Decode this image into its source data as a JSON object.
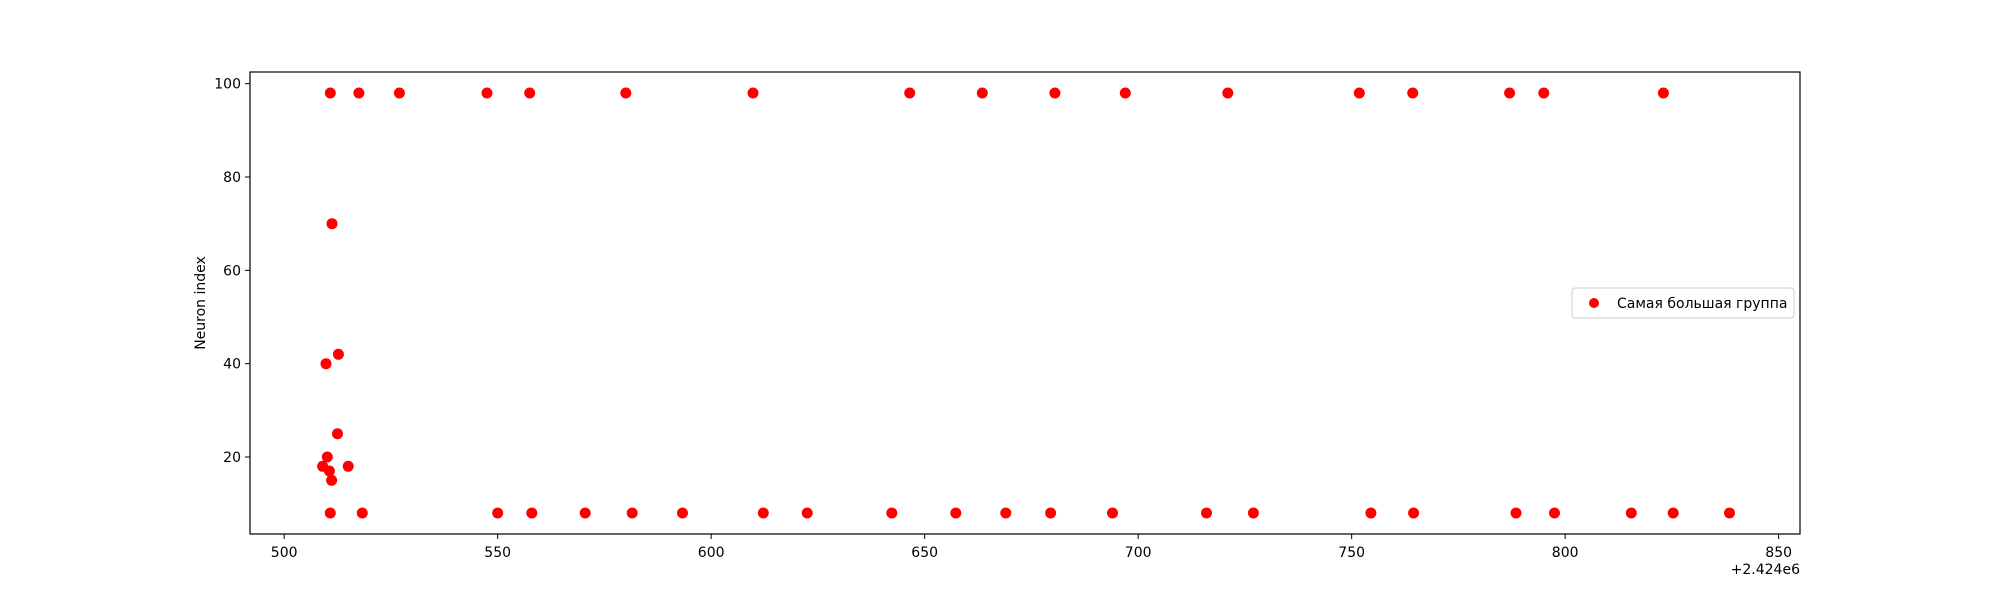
{
  "chart_data": {
    "type": "scatter",
    "xlabel": "",
    "ylabel": "Neuron index",
    "x_offset_text": "+2.424e6",
    "xlim": [
      492,
      855
    ],
    "ylim": [
      3.5,
      102.5
    ],
    "xticks": [
      500,
      550,
      600,
      650,
      700,
      750,
      800,
      850
    ],
    "yticks": [
      20,
      40,
      60,
      80,
      100
    ],
    "grid": false,
    "legend_position": "center-right",
    "series": [
      {
        "name": "Самая большая группа",
        "color": "#ff0000",
        "points": [
          [
            510.8,
            98
          ],
          [
            517.5,
            98
          ],
          [
            527.0,
            98
          ],
          [
            547.5,
            98
          ],
          [
            557.5,
            98
          ],
          [
            580.0,
            98
          ],
          [
            609.8,
            98
          ],
          [
            646.5,
            98
          ],
          [
            663.5,
            98
          ],
          [
            680.5,
            98
          ],
          [
            697.0,
            98
          ],
          [
            721.0,
            98
          ],
          [
            751.8,
            98
          ],
          [
            764.3,
            98
          ],
          [
            787.0,
            98
          ],
          [
            795.0,
            98
          ],
          [
            823.0,
            98
          ],
          [
            511.2,
            70
          ],
          [
            512.7,
            42
          ],
          [
            509.8,
            40
          ],
          [
            512.5,
            25
          ],
          [
            510.1,
            20
          ],
          [
            509.0,
            18
          ],
          [
            515.0,
            18
          ],
          [
            510.6,
            17
          ],
          [
            511.1,
            15
          ],
          [
            510.8,
            8
          ],
          [
            518.3,
            8
          ],
          [
            550.0,
            8
          ],
          [
            558.0,
            8
          ],
          [
            570.5,
            8
          ],
          [
            581.5,
            8
          ],
          [
            593.3,
            8
          ],
          [
            612.2,
            8
          ],
          [
            622.5,
            8
          ],
          [
            642.3,
            8
          ],
          [
            657.3,
            8
          ],
          [
            669.0,
            8
          ],
          [
            679.5,
            8
          ],
          [
            694.0,
            8
          ],
          [
            716.0,
            8
          ],
          [
            727.0,
            8
          ],
          [
            754.5,
            8
          ],
          [
            764.5,
            8
          ],
          [
            788.5,
            8
          ],
          [
            797.5,
            8
          ],
          [
            815.5,
            8
          ],
          [
            825.3,
            8
          ],
          [
            838.5,
            8
          ]
        ]
      }
    ]
  }
}
